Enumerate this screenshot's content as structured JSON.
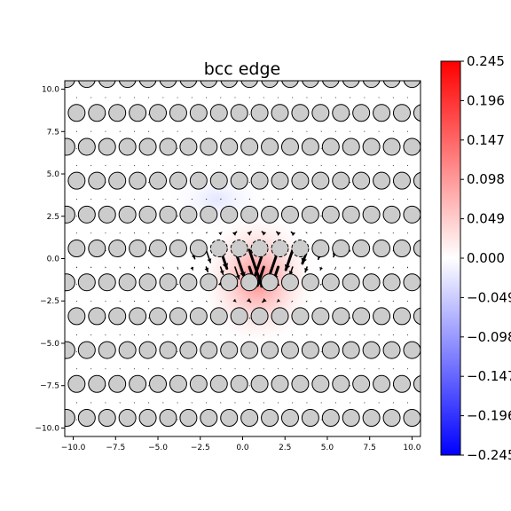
{
  "chart_data": {
    "type": "scatter",
    "title": "bcc edge",
    "xlabel": "",
    "ylabel": "",
    "xlim": [
      -10.5,
      10.5
    ],
    "ylim": [
      -10.5,
      10.5
    ],
    "x_ticks": [
      "−10.0",
      "−7.5",
      "−5.0",
      "−2.5",
      "0.0",
      "2.5",
      "5.0",
      "7.5",
      "10.0"
    ],
    "x_tick_values": [
      -10,
      -7.5,
      -5,
      -2.5,
      0,
      2.5,
      5,
      7.5,
      10
    ],
    "y_ticks": [
      "−10.0",
      "−7.5",
      "−5.0",
      "−2.5",
      "0.0",
      "2.5",
      "5.0",
      "7.5",
      "10.0"
    ],
    "y_tick_values": [
      -10,
      -7.5,
      -5,
      -2.5,
      0,
      2.5,
      5,
      7.5,
      10
    ],
    "grid": false,
    "atom_rows": [
      {
        "y": 10.6,
        "dx": 1.2,
        "offset": 0
      },
      {
        "y": 8.6,
        "dx": 1.2,
        "offset": 0.6
      },
      {
        "y": 6.6,
        "dx": 1.2,
        "offset": 0
      },
      {
        "y": 4.6,
        "dx": 1.2,
        "offset": 0.6
      },
      {
        "y": 2.6,
        "dx": 1.2,
        "offset": 0
      },
      {
        "y": 0.6,
        "dx": 1.2,
        "offset": 0.6
      },
      {
        "y": -1.4,
        "dx": 1.2,
        "offset": 0
      },
      {
        "y": -3.4,
        "dx": 1.2,
        "offset": 0.6
      },
      {
        "y": -5.4,
        "dx": 1.2,
        "offset": 0
      },
      {
        "y": -7.4,
        "dx": 1.2,
        "offset": 0.6
      },
      {
        "y": -9.4,
        "dx": 1.2,
        "offset": 0
      }
    ],
    "atom_color": "#cccccc",
    "atom_edge_color": "#000000",
    "density_field": {
      "center": [
        0.9,
        -1.2
      ],
      "max_value": 0.08,
      "negative_lobe_center": [
        -1.5,
        3.5
      ],
      "negative_lobe_value": -0.01
    },
    "colorbar": {
      "min": -0.245,
      "max": 0.245,
      "colormap": "bwr",
      "tick_labels": [
        "0.245",
        "0.196",
        "0.147",
        "0.098",
        "0.049",
        "0.000",
        "−0.049",
        "−0.098",
        "−0.147",
        "−0.196",
        "−0.245"
      ],
      "tick_values": [
        0.245,
        0.196,
        0.147,
        0.098,
        0.049,
        0.0,
        -0.049,
        -0.098,
        -0.147,
        -0.196,
        -0.245
      ]
    }
  }
}
